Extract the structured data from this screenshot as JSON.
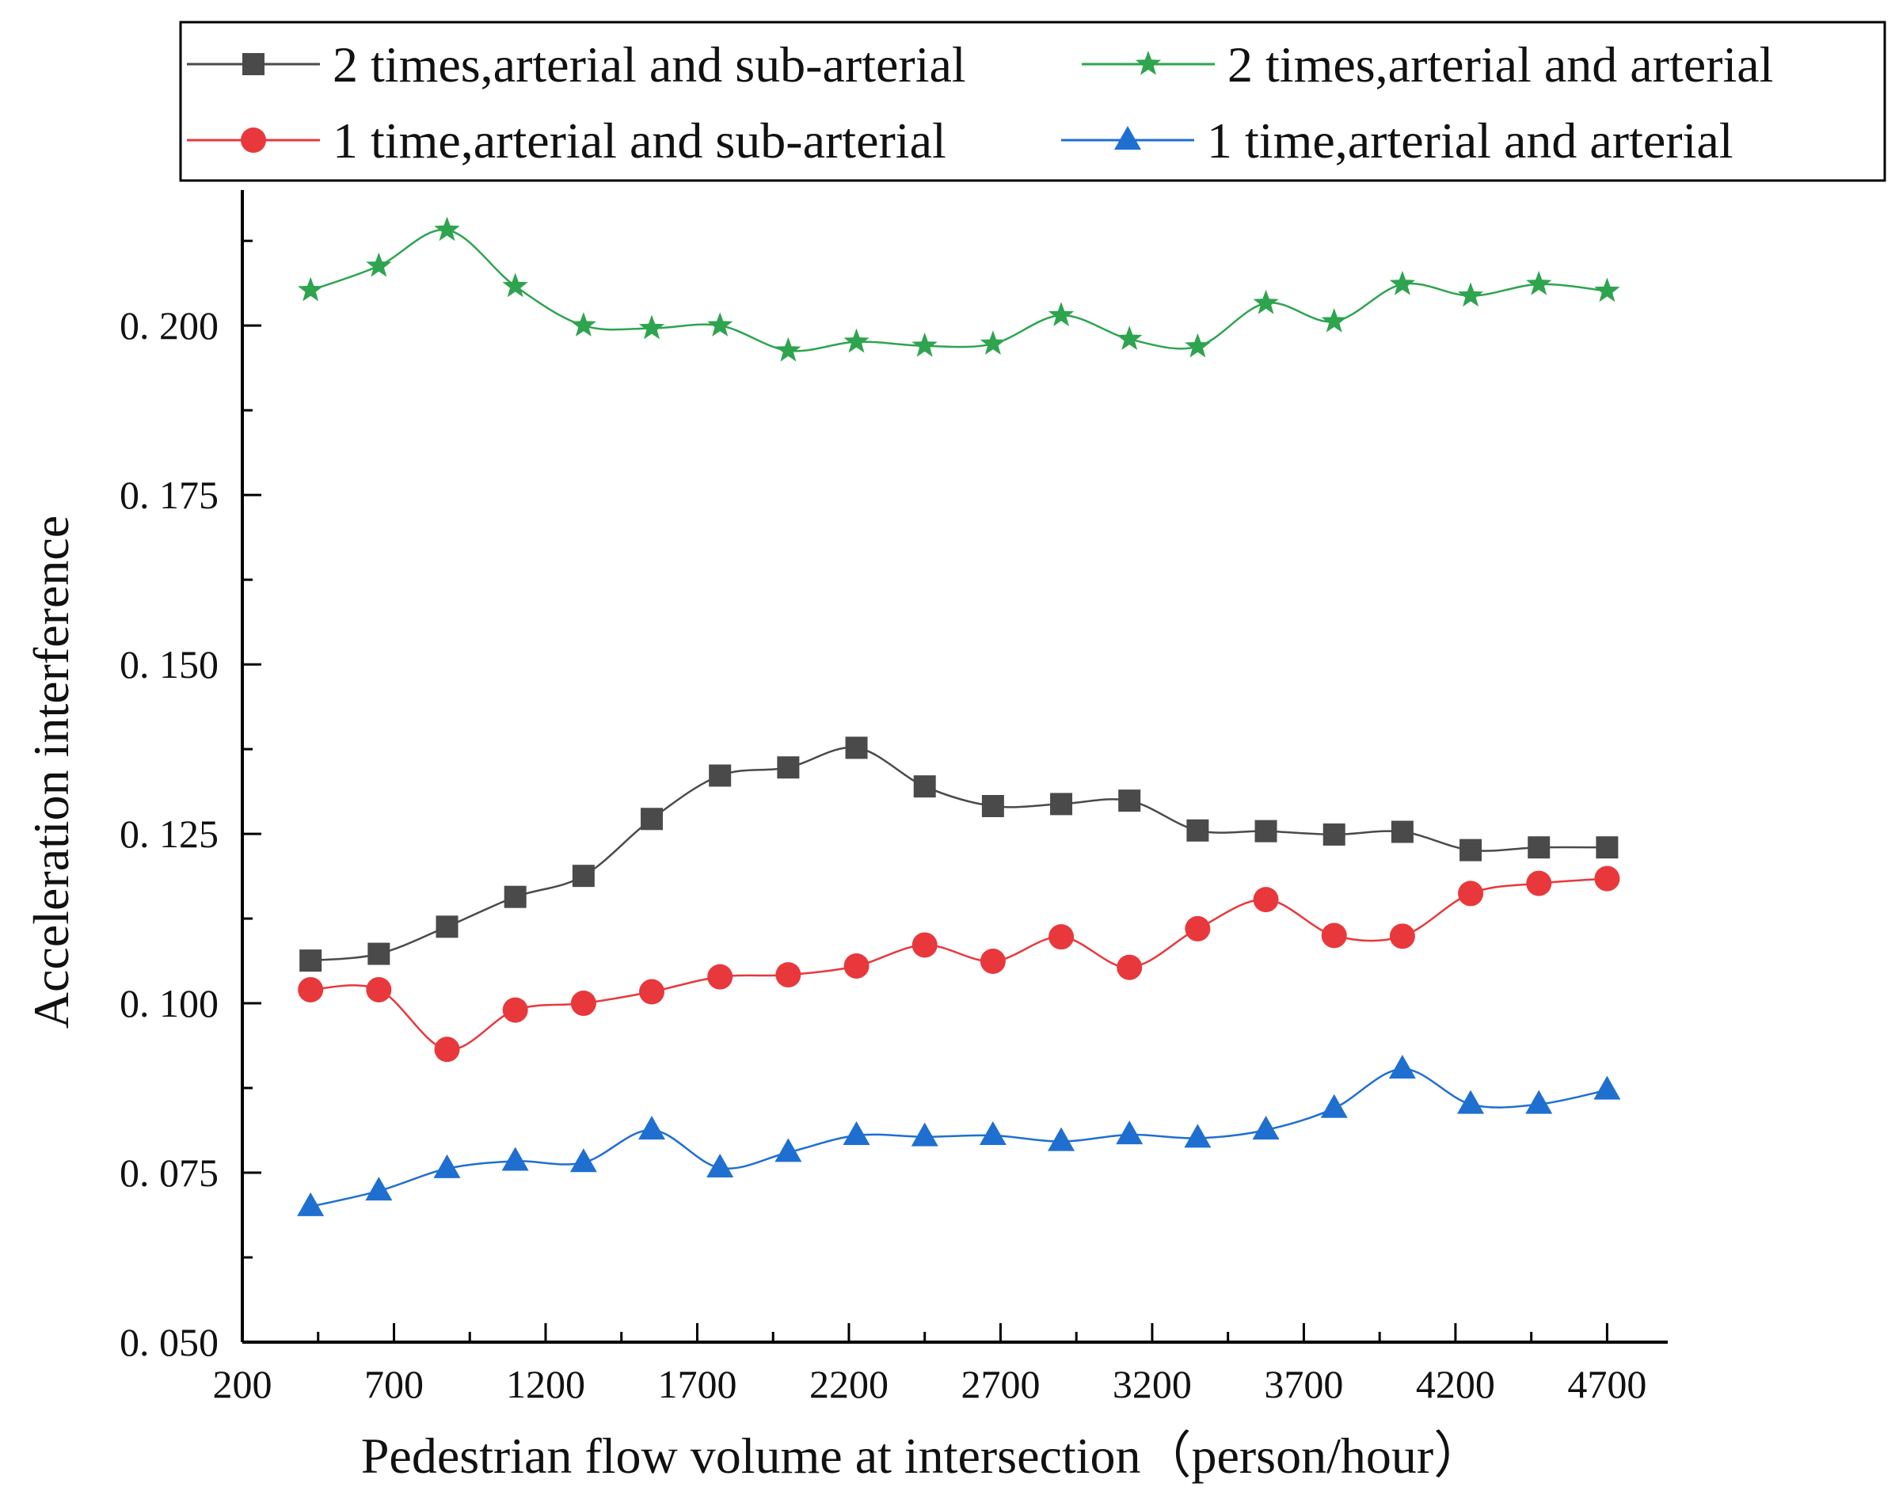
{
  "chart_data": {
    "type": "line",
    "title": "",
    "xlabel": "Pedestrian flow volume at intersection（person/hour）",
    "ylabel": "Acceleration interference",
    "xlim": [
      200,
      4900
    ],
    "ylim": [
      0.05,
      0.22
    ],
    "xticks": [
      200,
      700,
      1200,
      1700,
      2200,
      2700,
      3200,
      3700,
      4200,
      4700
    ],
    "xtick_labels": [
      "200",
      "700",
      "1200",
      "1700",
      "2200",
      "2700",
      "3200",
      "3700",
      "4200",
      "4700"
    ],
    "yticks": [
      0.05,
      0.075,
      0.1,
      0.125,
      0.15,
      0.175,
      0.2
    ],
    "ytick_labels": [
      "0. 050",
      "0. 075",
      "0. 100",
      "0. 125",
      "0. 150",
      "0. 175",
      "0. 200"
    ],
    "grid": false,
    "legend_position": "top",
    "x": [
      425,
      650,
      875,
      1100,
      1325,
      1550,
      1775,
      2000,
      2225,
      2450,
      2675,
      2900,
      3125,
      3350,
      3575,
      3800,
      4025,
      4250,
      4475,
      4700
    ],
    "series": [
      {
        "name": "2 times,arterial and sub-arterial",
        "color": "#4a4a4a",
        "marker": "square",
        "values": [
          0.1063,
          0.1073,
          0.1113,
          0.1157,
          0.1188,
          0.1272,
          0.1336,
          0.1348,
          0.1377,
          0.132,
          0.1291,
          0.1294,
          0.1299,
          0.1255,
          0.1254,
          0.1249,
          0.1253,
          0.1226,
          0.123,
          0.123
        ]
      },
      {
        "name": "2 times,arterial and arterial",
        "color": "#2ea44f",
        "marker": "star",
        "values": [
          0.2052,
          0.2088,
          0.2141,
          0.2058,
          0.2,
          0.1996,
          0.2,
          0.1963,
          0.1976,
          0.197,
          0.1973,
          0.2015,
          0.198,
          0.1969,
          0.2033,
          0.2006,
          0.2061,
          0.2044,
          0.2061,
          0.2051
        ]
      },
      {
        "name": "1 time,arterial and sub-arterial",
        "color": "#e8383c",
        "marker": "circle",
        "values": [
          0.102,
          0.102,
          0.0932,
          0.099,
          0.1,
          0.1017,
          0.1039,
          0.1042,
          0.1055,
          0.1086,
          0.1062,
          0.1098,
          0.1053,
          0.111,
          0.1153,
          0.11,
          0.1099,
          0.1162,
          0.1177,
          0.1184
        ]
      },
      {
        "name": "1 time,arterial and arterial",
        "color": "#1f6fd1",
        "marker": "triangle",
        "values": [
          0.07,
          0.0723,
          0.0756,
          0.0767,
          0.0765,
          0.0813,
          0.0757,
          0.078,
          0.0805,
          0.0803,
          0.0805,
          0.0796,
          0.0806,
          0.0801,
          0.0813,
          0.0845,
          0.0903,
          0.0851,
          0.0851,
          0.0872
        ]
      }
    ]
  }
}
